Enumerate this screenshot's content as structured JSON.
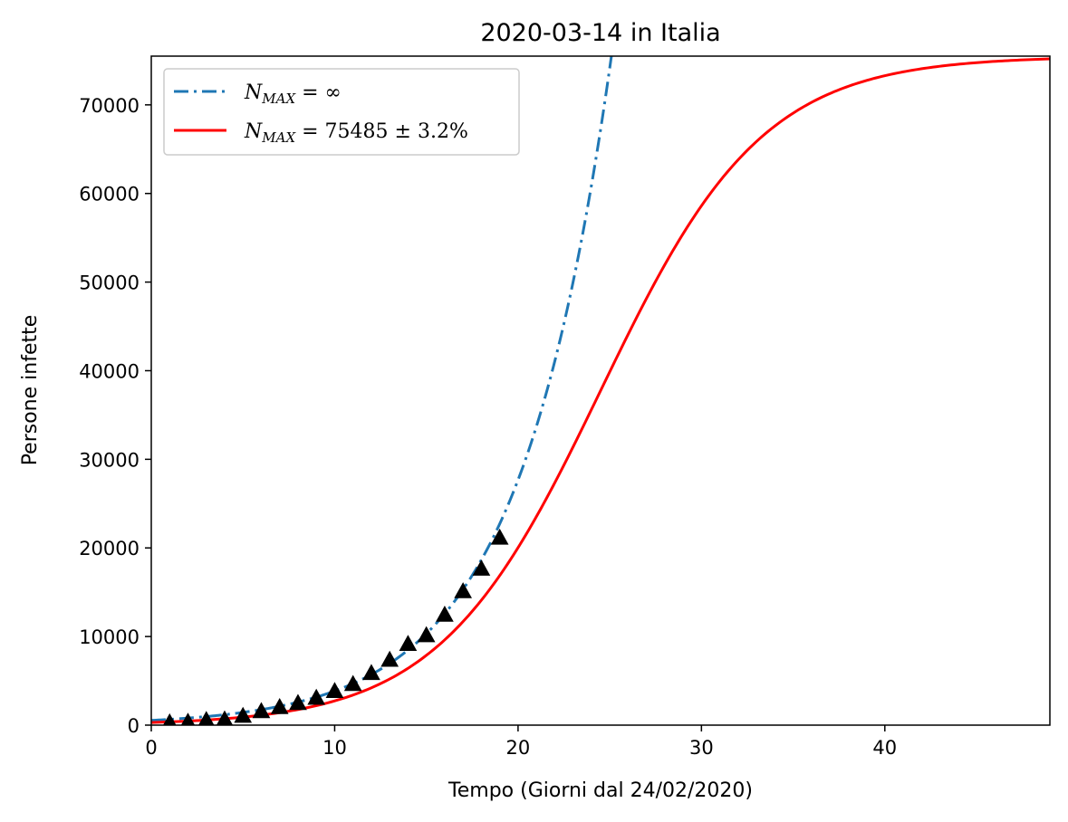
{
  "chart_data": {
    "type": "line",
    "title": "2020-03-14 in Italia",
    "xlabel": "Tempo (Giorni dal 24/02/2020)",
    "ylabel": "Persone infette",
    "xlim": [
      0,
      49
    ],
    "ylim": [
      0,
      75500
    ],
    "xticks": [
      0,
      10,
      20,
      30,
      40
    ],
    "yticks": [
      0,
      10000,
      20000,
      30000,
      40000,
      50000,
      60000,
      70000
    ],
    "legend": {
      "placement": "top-left"
    },
    "series": [
      {
        "name": "N_MAX = ∞",
        "label_main": "N",
        "label_sub": "MAX",
        "label_rest": " = ∞",
        "style": "dash-dot",
        "color": "#1f77b4",
        "model": "exponential",
        "params": {
          "a": 536,
          "b": 0.1972
        },
        "x_range": [
          0,
          25.5
        ]
      },
      {
        "name": "N_MAX = 75485 ± 3.2%",
        "label_main": "N",
        "label_sub": "MAX",
        "label_rest": " = 75485 ± 3.2%",
        "style": "solid",
        "color": "#ff0000",
        "model": "logistic",
        "params": {
          "K": 75485,
          "r": 0.2263,
          "t0": 24.5
        },
        "x_range": [
          0,
          49
        ]
      }
    ],
    "observed": {
      "marker": "triangle",
      "color": "#000000",
      "x": [
        1,
        2,
        3,
        4,
        5,
        6,
        7,
        8,
        9,
        10,
        11,
        12,
        13,
        14,
        15,
        16,
        17,
        18,
        19
      ],
      "y": [
        310,
        380,
        580,
        650,
        1050,
        1580,
        2040,
        2500,
        3090,
        3850,
        4640,
        5880,
        7380,
        9170,
        10150,
        12460,
        15110,
        17660,
        21160
      ]
    }
  }
}
